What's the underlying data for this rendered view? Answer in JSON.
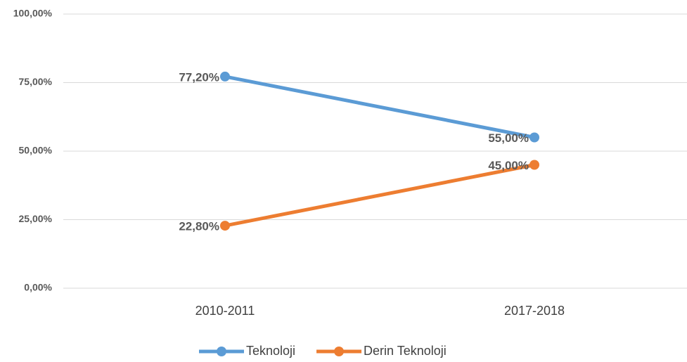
{
  "chart_data": {
    "type": "line",
    "categories": [
      "2010-2011",
      "2017-2018"
    ],
    "series": [
      {
        "name": "Teknoloji",
        "color": "#5b9bd5",
        "values": [
          77.2,
          55
        ],
        "value_labels": [
          "77,20%",
          "55,00%"
        ]
      },
      {
        "name": "Derin Teknoloji",
        "color": "#ed7d31",
        "values": [
          22.8,
          45
        ],
        "value_labels": [
          "22,80%",
          "45,00%"
        ]
      }
    ],
    "ylim": [
      0,
      100
    ],
    "yticks": [
      {
        "value": 0,
        "label": "0,00%"
      },
      {
        "value": 25,
        "label": "25,00%"
      },
      {
        "value": 50,
        "label": "50,00%"
      },
      {
        "value": 75,
        "label": "75,00%"
      },
      {
        "value": 100,
        "label": "100,00%"
      }
    ],
    "grid": true,
    "legend": "bottom"
  }
}
